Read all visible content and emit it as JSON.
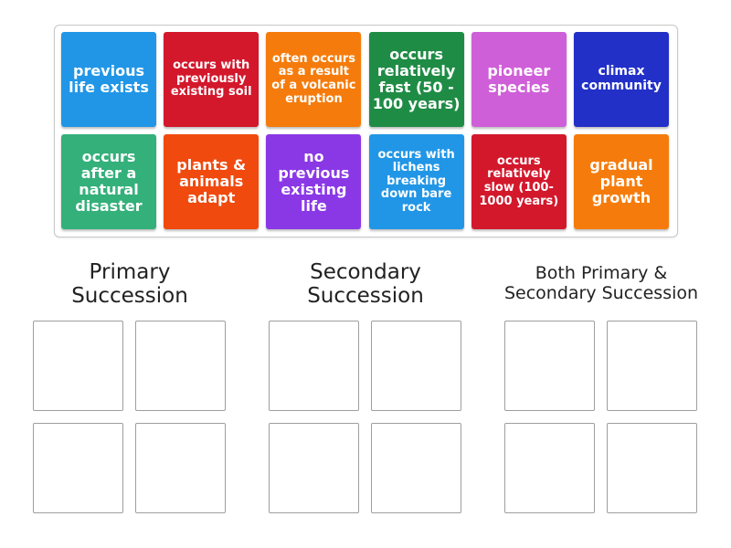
{
  "cards": [
    {
      "label": "previous life exists",
      "color": "#2196e6",
      "row": 0,
      "col": 0,
      "size": 16
    },
    {
      "label": "occurs with previously existing soil",
      "color": "#d3182c",
      "row": 0,
      "col": 1,
      "size": 13
    },
    {
      "label": "often occurs as a result of a volcanic eruption",
      "color": "#f57c0c",
      "row": 0,
      "col": 2,
      "size": 13
    },
    {
      "label": "occurs relatively fast (50 - 100 years)",
      "color": "#1f8c45",
      "row": 0,
      "col": 3,
      "size": 16
    },
    {
      "label": "pioneer species",
      "color": "#cf5fd8",
      "row": 0,
      "col": 4,
      "size": 16
    },
    {
      "label": "climax community",
      "color": "#2230c8",
      "row": 0,
      "col": 5,
      "size": 14
    },
    {
      "label": "occurs after a natural disaster",
      "color": "#34b07a",
      "row": 1,
      "col": 0,
      "size": 16
    },
    {
      "label": "plants & animals adapt",
      "color": "#f04a0e",
      "row": 1,
      "col": 1,
      "size": 16
    },
    {
      "label": "no previous existing life",
      "color": "#8a38e6",
      "row": 1,
      "col": 2,
      "size": 16
    },
    {
      "label": "occurs with lichens breaking down bare rock",
      "color": "#2196e6",
      "row": 1,
      "col": 3,
      "size": 13
    },
    {
      "label": "occurs relatively slow (100-1000 years)",
      "color": "#d3182c",
      "row": 1,
      "col": 4,
      "size": 13
    },
    {
      "label": "gradual plant growth",
      "color": "#f57c0c",
      "row": 1,
      "col": 5,
      "size": 16
    }
  ],
  "groups": [
    {
      "title_line1": "Primary",
      "title_line2": "Succession"
    },
    {
      "title_line1": "Secondary",
      "title_line2": "Succession"
    },
    {
      "title_line1": "Both Primary &",
      "title_line2": "Secondary Succession"
    }
  ]
}
